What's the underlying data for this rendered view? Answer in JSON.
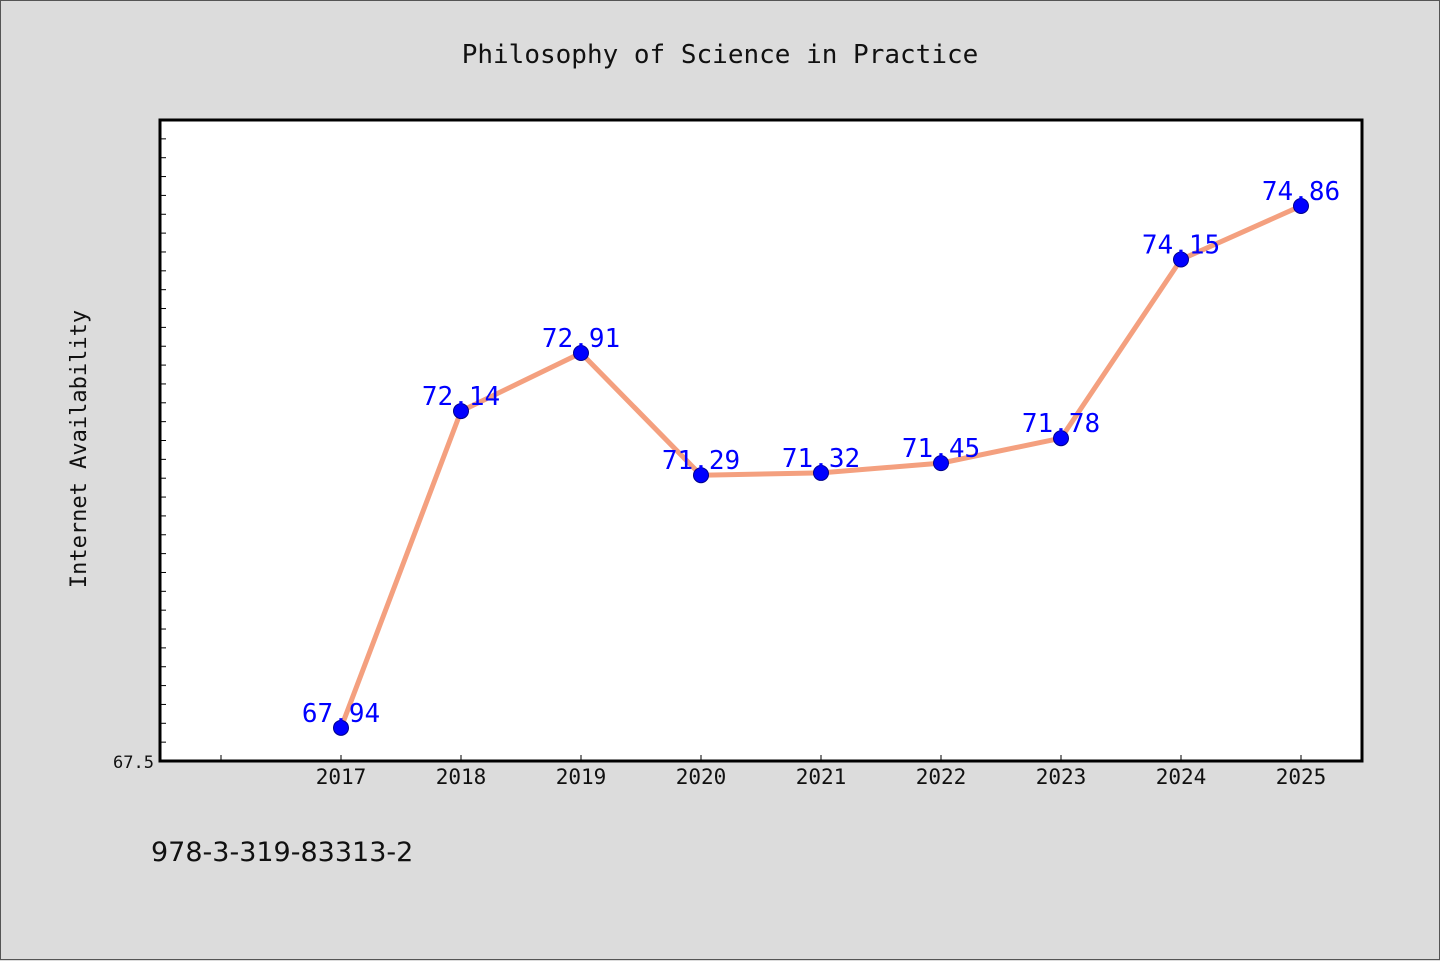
{
  "chart_data": {
    "type": "line",
    "title": "Philosophy of Science in Practice",
    "xlabel": "",
    "ylabel": "Internet Availability",
    "categories": [
      "2017",
      "2018",
      "2019",
      "2020",
      "2021",
      "2022",
      "2023",
      "2024",
      "2025"
    ],
    "series": [
      {
        "values": [
          67.94,
          72.14,
          72.91,
          71.29,
          71.32,
          71.45,
          71.78,
          74.15,
          74.86
        ]
      }
    ],
    "ylim": [
      67.5,
      76.0
    ],
    "ytick_labels": [
      "67.5"
    ],
    "data_labels": [
      "67.94",
      "72.14",
      "72.91",
      "71.29",
      "71.32",
      "71.45",
      "71.78",
      "74.15",
      "74.86"
    ],
    "line_color": "#f4a07f",
    "marker_color": "#0000ff",
    "label_color": "#0000ff",
    "grid": false,
    "legend": "none"
  },
  "footer": {
    "isbn": "978-3-319-83313-2"
  }
}
